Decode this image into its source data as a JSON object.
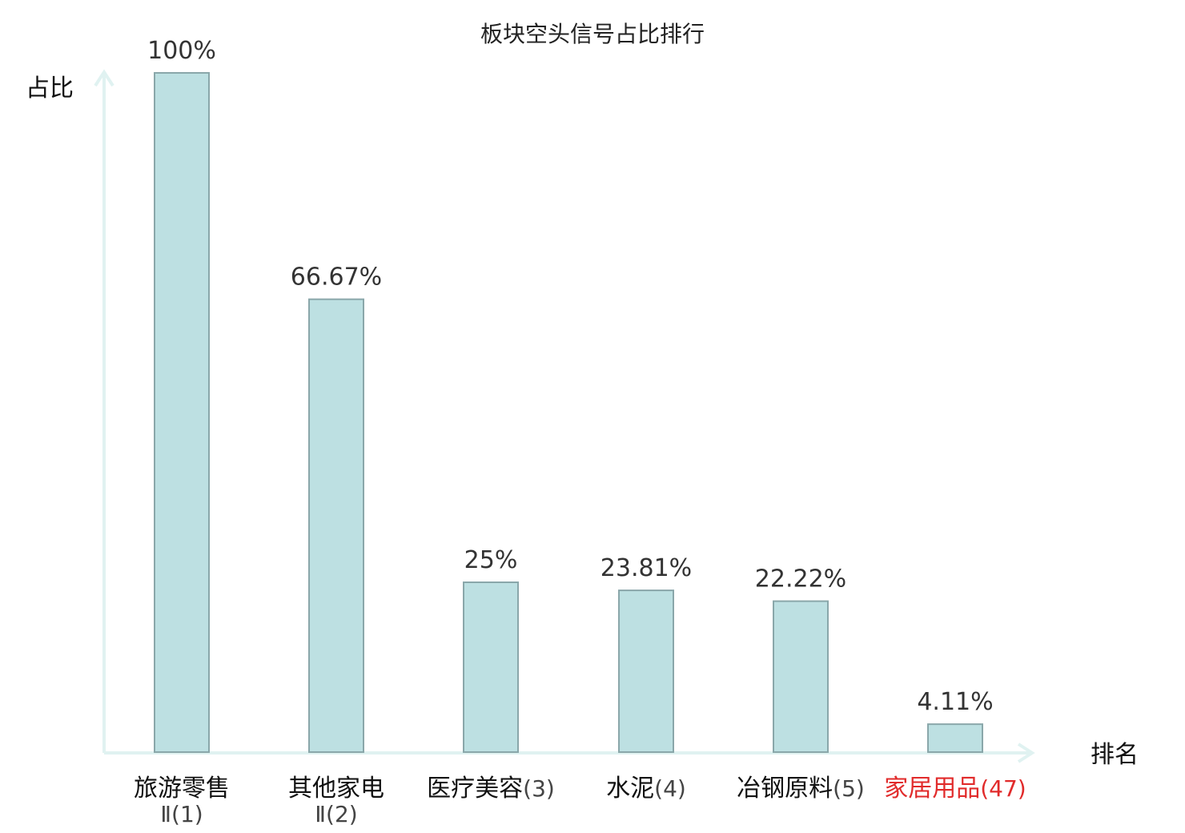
{
  "colors": {
    "bar_fill": "#bde0e2",
    "bar_stroke": "#8aa7aa",
    "axis": "#e0f2f1",
    "text": "#333333",
    "highlight": "#e12b2b"
  },
  "chart_data": {
    "type": "bar",
    "title": "板块空头信号占比排行",
    "xlabel": "排名",
    "ylabel": "占比",
    "ylim": [
      0,
      100
    ],
    "grid": false,
    "categories": [
      {
        "name": "旅游零售",
        "rank": "Ⅱ(1)",
        "value": 100,
        "label": "100%",
        "highlight": false
      },
      {
        "name": "其他家电",
        "rank": "Ⅱ(2)",
        "value": 66.67,
        "label": "66.67%",
        "highlight": false
      },
      {
        "name": "医疗美容",
        "rank": "(3)",
        "value": 25,
        "label": "25%",
        "highlight": false
      },
      {
        "name": "水泥",
        "rank": "(4)",
        "value": 23.81,
        "label": "23.81%",
        "highlight": false
      },
      {
        "name": "冶钢原料",
        "rank": "(5)",
        "value": 22.22,
        "label": "22.22%",
        "highlight": false
      },
      {
        "name": "家居用品",
        "rank": "(47)",
        "value": 4.11,
        "label": "4.11%",
        "highlight": true
      }
    ]
  }
}
